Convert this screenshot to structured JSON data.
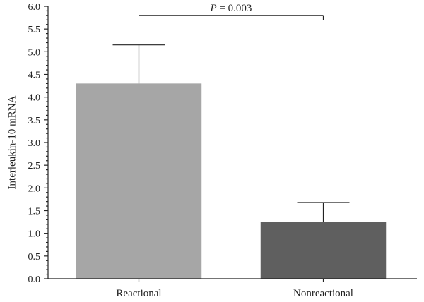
{
  "chart_data": {
    "type": "bar",
    "categories": [
      "Reactional",
      "Nonreactional"
    ],
    "values": [
      4.3,
      1.25
    ],
    "error_upper": [
      5.15,
      1.68
    ],
    "bar_colors": [
      "#a6a6a6",
      "#5f5f5f"
    ],
    "title": "",
    "xlabel": "",
    "ylabel": "Interleukin-10 mRNA",
    "ylim": [
      0,
      6.0
    ],
    "y_ticks": [
      "0.0",
      "0.5",
      "1.0",
      "1.5",
      "2.0",
      "2.5",
      "3.0",
      "3.5",
      "4.0",
      "4.5",
      "5.0",
      "5.5",
      "6.0"
    ],
    "y_minor_step": 0.1,
    "grid": false,
    "annotation": {
      "italic_part": "P",
      "rest": " = 0.003",
      "y_value": 5.8
    }
  }
}
